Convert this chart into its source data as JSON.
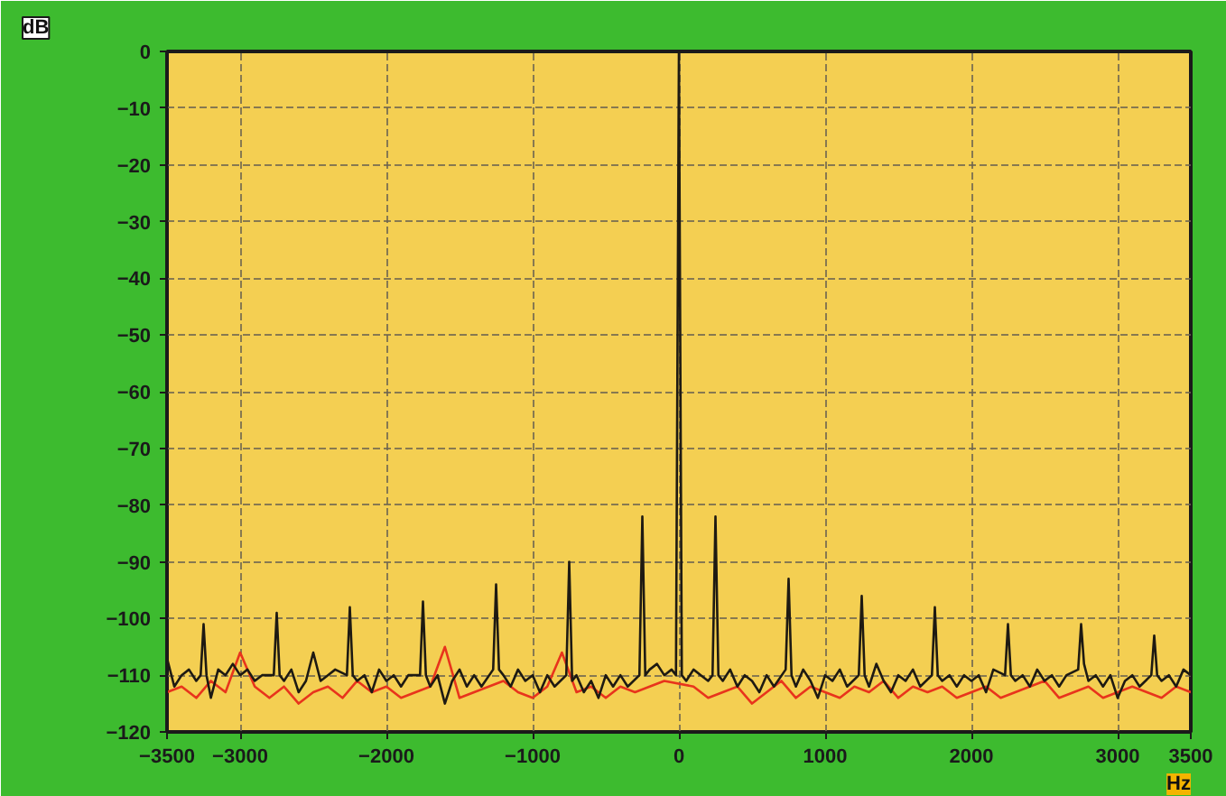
{
  "chart_data": {
    "type": "line",
    "xlabel": "Hz",
    "ylabel": "dB",
    "xlim": [
      -3500,
      3500
    ],
    "ylim": [
      -120,
      0
    ],
    "xticks": [
      -3500,
      -3000,
      -2000,
      -1000,
      0,
      1000,
      2000,
      3000,
      3500
    ],
    "yticks": [
      0,
      -10,
      -20,
      -30,
      -40,
      -50,
      -60,
      -70,
      -80,
      -90,
      -100,
      -110,
      -120
    ],
    "grid": true,
    "line_style": "solid",
    "series": [
      {
        "color": "#e8341c",
        "x": [
          -3500,
          -3400,
          -3300,
          -3200,
          -3100,
          -3000,
          -2900,
          -2800,
          -2700,
          -2600,
          -2500,
          -2400,
          -2300,
          -2200,
          -2100,
          -2000,
          -1900,
          -1800,
          -1700,
          -1600,
          -1500,
          -1400,
          -1300,
          -1200,
          -1100,
          -1000,
          -900,
          -800,
          -700,
          -600,
          -500,
          -400,
          -300,
          -200,
          -100,
          100,
          200,
          300,
          400,
          500,
          600,
          700,
          800,
          900,
          1000,
          1100,
          1200,
          1300,
          1400,
          1500,
          1600,
          1700,
          1800,
          1900,
          2000,
          2100,
          2200,
          2300,
          2400,
          2500,
          2600,
          2700,
          2800,
          2900,
          3000,
          3100,
          3200,
          3300,
          3400,
          3500
        ],
        "values": [
          -113,
          -112,
          -114,
          -111,
          -113,
          -106,
          -112,
          -114,
          -112,
          -115,
          -113,
          -112,
          -114,
          -111,
          -113,
          -112,
          -114,
          -113,
          -112,
          -105,
          -114,
          -113,
          -112,
          -111,
          -113,
          -114,
          -112,
          -106,
          -113,
          -112,
          -114,
          -112,
          -113,
          -112,
          -111,
          -112,
          -114,
          -113,
          -112,
          -115,
          -113,
          -111,
          -114,
          -112,
          -113,
          -114,
          -112,
          -113,
          -111,
          -114,
          -112,
          -113,
          -112,
          -114,
          -113,
          -112,
          -114,
          -113,
          -112,
          -111,
          -114,
          -113,
          -112,
          -114,
          -113,
          -112,
          -113,
          -114,
          -112,
          -113
        ]
      },
      {
        "color": "#1e1a12",
        "x": [
          -3500,
          -3450,
          -3400,
          -3350,
          -3300,
          -3270,
          -3250,
          -3230,
          -3200,
          -3150,
          -3100,
          -3050,
          -3000,
          -2950,
          -2900,
          -2850,
          -2770,
          -2750,
          -2730,
          -2700,
          -2650,
          -2600,
          -2550,
          -2500,
          -2450,
          -2400,
          -2350,
          -2270,
          -2250,
          -2230,
          -2200,
          -2150,
          -2100,
          -2050,
          -2000,
          -1950,
          -1900,
          -1850,
          -1770,
          -1750,
          -1730,
          -1700,
          -1650,
          -1600,
          -1550,
          -1500,
          -1450,
          -1400,
          -1350,
          -1270,
          -1250,
          -1230,
          -1200,
          -1150,
          -1100,
          -1050,
          -1000,
          -950,
          -900,
          -850,
          -770,
          -750,
          -730,
          -700,
          -650,
          -600,
          -550,
          -500,
          -450,
          -400,
          -350,
          -270,
          -250,
          -230,
          -200,
          -150,
          -100,
          -50,
          -20,
          0,
          20,
          50,
          100,
          150,
          200,
          230,
          250,
          270,
          300,
          350,
          400,
          450,
          500,
          550,
          600,
          650,
          730,
          750,
          770,
          800,
          850,
          900,
          950,
          1000,
          1050,
          1100,
          1150,
          1230,
          1250,
          1270,
          1300,
          1350,
          1400,
          1450,
          1500,
          1550,
          1600,
          1650,
          1730,
          1750,
          1770,
          1800,
          1850,
          1900,
          1950,
          2000,
          2050,
          2100,
          2150,
          2230,
          2250,
          2270,
          2300,
          2350,
          2400,
          2450,
          2500,
          2550,
          2600,
          2650,
          2730,
          2750,
          2770,
          2800,
          2850,
          2900,
          2950,
          3000,
          3050,
          3100,
          3150,
          3230,
          3250,
          3270,
          3300,
          3350,
          3400,
          3450,
          3500
        ],
        "values": [
          -107,
          -112,
          -110,
          -109,
          -111,
          -110,
          -101,
          -110,
          -114,
          -109,
          -110,
          -108,
          -110,
          -109,
          -111,
          -110,
          -110,
          -99,
          -110,
          -111,
          -109,
          -113,
          -111,
          -106,
          -111,
          -110,
          -109,
          -110,
          -98,
          -110,
          -111,
          -110,
          -113,
          -109,
          -111,
          -110,
          -112,
          -110,
          -110,
          -97,
          -110,
          -112,
          -110,
          -115,
          -111,
          -109,
          -112,
          -110,
          -112,
          -109,
          -94,
          -109,
          -110,
          -112,
          -109,
          -111,
          -110,
          -113,
          -110,
          -112,
          -110,
          -90,
          -111,
          -110,
          -113,
          -111,
          -114,
          -110,
          -112,
          -110,
          -112,
          -110,
          -82,
          -110,
          -109,
          -108,
          -110,
          -109,
          -110,
          0,
          -110,
          -111,
          -109,
          -110,
          -111,
          -110,
          -82,
          -110,
          -111,
          -109,
          -112,
          -110,
          -111,
          -113,
          -110,
          -112,
          -109,
          -93,
          -110,
          -112,
          -109,
          -111,
          -114,
          -110,
          -111,
          -109,
          -112,
          -110,
          -96,
          -110,
          -112,
          -108,
          -111,
          -113,
          -110,
          -111,
          -109,
          -112,
          -110,
          -98,
          -110,
          -111,
          -110,
          -112,
          -110,
          -111,
          -110,
          -113,
          -109,
          -110,
          -101,
          -110,
          -111,
          -110,
          -112,
          -109,
          -111,
          -110,
          -112,
          -110,
          -109,
          -101,
          -108,
          -111,
          -110,
          -112,
          -110,
          -114,
          -111,
          -110,
          -112,
          -110,
          -103,
          -110,
          -111,
          -110,
          -112,
          -109,
          -110
        ]
      }
    ]
  }
}
